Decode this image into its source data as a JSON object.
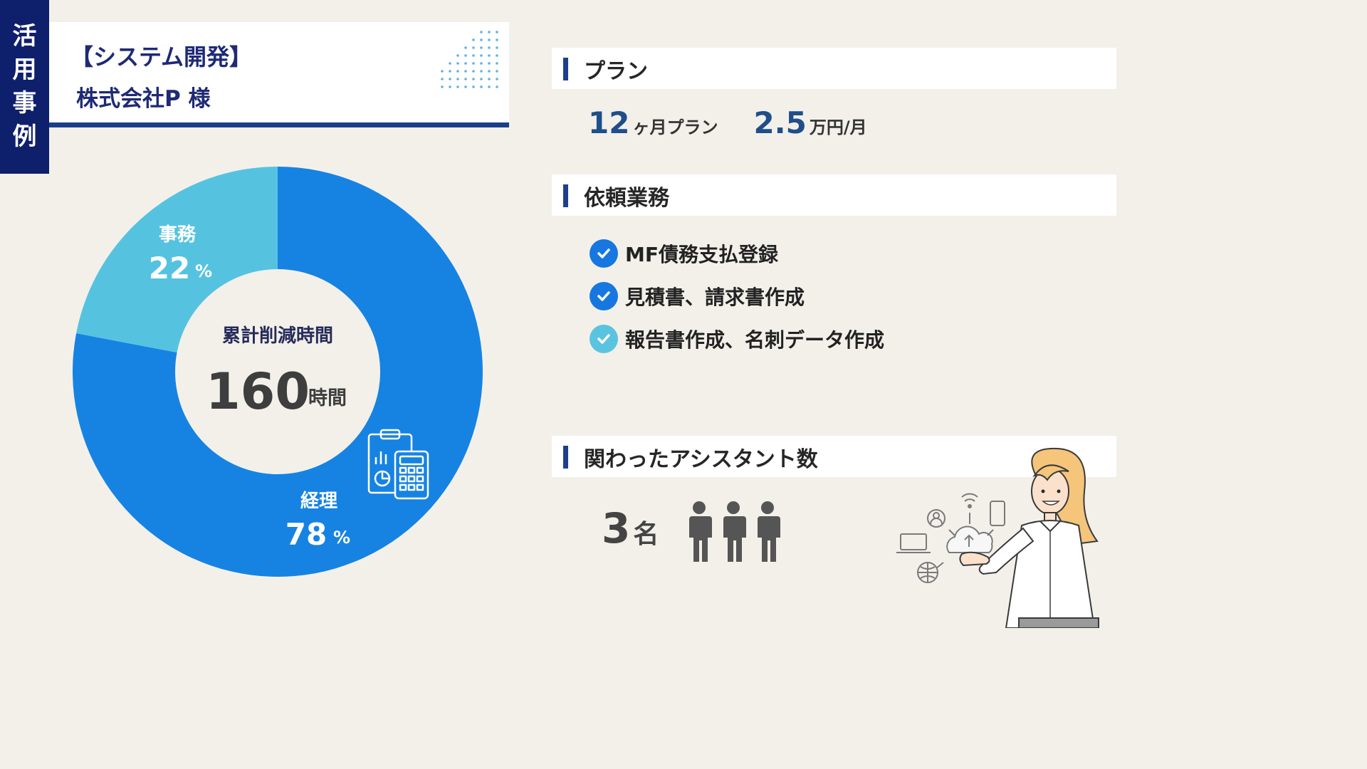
{
  "side_tab": {
    "chars": [
      "活",
      "用",
      "事",
      "例"
    ]
  },
  "header": {
    "category": "【システム開発】",
    "client": "株式会社P 様"
  },
  "sections": {
    "plan": "プラン",
    "tasks": "依頼業務",
    "assistants": "関わったアシスタント数"
  },
  "plan": {
    "duration_value": "12",
    "duration_unit": "ヶ月プラン",
    "price_value": "2.5",
    "price_unit": "万円/月"
  },
  "tasks": [
    {
      "label": "MF債務支払登録",
      "color": "#1677e0"
    },
    {
      "label": "見積書、請求書作成",
      "color": "#1677e0"
    },
    {
      "label": "報告書作成、名刺データ作成",
      "color": "#5ac3e0"
    }
  ],
  "assistants": {
    "value": "3",
    "unit": "名"
  },
  "chart_data": {
    "type": "pie",
    "center_label": "累計削減時間",
    "center_value": "160",
    "center_unit": "時間",
    "slices": [
      {
        "name": "経理",
        "value": 78,
        "label": "78",
        "unit": "%",
        "color": "#1683e3"
      },
      {
        "name": "事務",
        "value": 22,
        "label": "22",
        "unit": "%",
        "color": "#55c3e0"
      }
    ]
  },
  "colors": {
    "navy": "#0e1f6b",
    "accent": "#1f4e8a",
    "bg": "#f3f0ea"
  },
  "icons": [
    "check-icon",
    "person-icon",
    "calculator-clipboard-icon",
    "cloud-network-icon",
    "dots-pattern-icon"
  ]
}
